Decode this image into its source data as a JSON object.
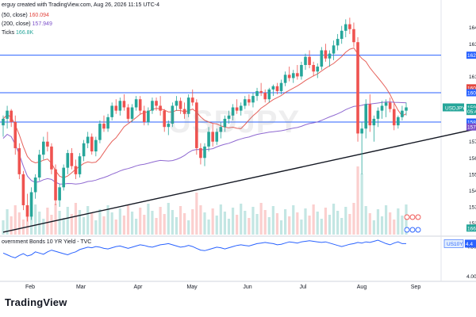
{
  "header": {
    "line1": "erguy created with TradingView.com, Aug 26, 2026 11:15 UTC-4",
    "line2_label": "(50, close)",
    "line2_value": "160.094",
    "line3_label": "(200, close)",
    "line3_value": "157.949",
    "line4_label": "Ticks",
    "line4_value": "166.8K"
  },
  "watermark": "USDJPY",
  "brand": "TradingView",
  "colors": {
    "up": "#26a69a",
    "down": "#ef5350",
    "sma50": "#e2463f",
    "sma200": "#7b4fc9",
    "hline": "#2962ff",
    "trendline": "#131722",
    "yield_line": "#2962ff",
    "label_bg": "#e2463f",
    "price_label_bg": "#26a69a"
  },
  "price_axis": {
    "ticks": [
      "164",
      "163",
      "161",
      "159",
      "157",
      "156",
      "155",
      "154",
      "153",
      "152"
    ],
    "badges": [
      {
        "text": "162",
        "value": 162.3,
        "kind": "hline"
      },
      {
        "text": "160",
        "value": 160.3,
        "kind": "sma50"
      },
      {
        "text": "160",
        "value": 160.0,
        "kind": "hline"
      },
      {
        "text": "159",
        "value": 159.1,
        "kind": "price"
      },
      {
        "text": "05:4",
        "value": 158.85,
        "kind": "countdown"
      },
      {
        "text": "158",
        "value": 158.2,
        "kind": "hline"
      },
      {
        "text": "157",
        "value": 157.9,
        "kind": "sma200"
      },
      {
        "text": "166",
        "value": 151.7,
        "kind": "volume"
      }
    ],
    "symbol_label": "USDJPY"
  },
  "sub_pane": {
    "title": "overnment Bonds 10 YR Yield - TVC",
    "ticks": [
      "4.50",
      "4.00"
    ],
    "badge_symbol": "US10Y",
    "badge_value": "4.4"
  },
  "time_axis": {
    "labels": [
      "Feb",
      "Mar",
      "Apr",
      "May",
      "Jun",
      "Jul",
      "Aug",
      "Sep"
    ]
  },
  "chart_data": [
    {
      "type": "candlestick",
      "symbol": "USDJPY",
      "ylim": [
        151.3,
        165.2
      ],
      "horizontal_lines": [
        162.3,
        160.0,
        158.2
      ],
      "trendline": {
        "from": [
          0,
          151.45
        ],
        "to": [
          140,
          159.0
        ]
      },
      "ohlc": [
        [
          158.0,
          158.6,
          157.3,
          158.4
        ],
        [
          158.4,
          159.2,
          157.8,
          158.9
        ],
        [
          158.9,
          159.0,
          157.9,
          158.2
        ],
        [
          158.2,
          158.6,
          156.2,
          156.6
        ],
        [
          156.6,
          156.9,
          154.7,
          155.0
        ],
        [
          155.0,
          155.2,
          152.8,
          153.1
        ],
        [
          153.1,
          153.8,
          152.1,
          152.4
        ],
        [
          152.4,
          154.2,
          152.2,
          153.9
        ],
        [
          153.9,
          155.0,
          153.5,
          154.8
        ],
        [
          154.8,
          156.5,
          154.6,
          156.2
        ],
        [
          156.2,
          157.3,
          155.9,
          157.0
        ],
        [
          157.0,
          157.6,
          156.4,
          156.7
        ],
        [
          156.7,
          156.9,
          155.0,
          155.3
        ],
        [
          155.3,
          155.6,
          153.1,
          153.4
        ],
        [
          153.4,
          154.4,
          153.0,
          154.2
        ],
        [
          154.2,
          155.6,
          154.0,
          155.4
        ],
        [
          155.4,
          156.5,
          155.0,
          156.3
        ],
        [
          156.3,
          156.6,
          155.3,
          155.5
        ],
        [
          155.5,
          155.9,
          154.7,
          155.0
        ],
        [
          155.0,
          156.3,
          154.8,
          156.1
        ],
        [
          156.1,
          157.1,
          155.8,
          156.9
        ],
        [
          156.9,
          157.6,
          156.6,
          157.3
        ],
        [
          157.3,
          157.5,
          156.2,
          156.4
        ],
        [
          156.4,
          157.3,
          156.1,
          157.1
        ],
        [
          157.1,
          158.3,
          156.9,
          158.1
        ],
        [
          158.1,
          158.6,
          157.6,
          157.8
        ],
        [
          157.8,
          158.7,
          157.6,
          158.5
        ],
        [
          158.5,
          159.4,
          158.3,
          159.2
        ],
        [
          159.2,
          159.6,
          158.7,
          158.9
        ],
        [
          158.9,
          159.7,
          158.6,
          159.5
        ],
        [
          159.5,
          159.9,
          158.9,
          159.1
        ],
        [
          159.1,
          159.3,
          158.2,
          158.4
        ],
        [
          158.4,
          159.3,
          158.2,
          159.1
        ],
        [
          159.1,
          159.8,
          158.9,
          159.6
        ],
        [
          159.6,
          159.8,
          158.7,
          158.9
        ],
        [
          158.9,
          159.2,
          158.0,
          158.2
        ],
        [
          158.2,
          159.1,
          158.0,
          158.9
        ],
        [
          158.9,
          159.7,
          158.7,
          159.5
        ],
        [
          159.5,
          159.7,
          158.9,
          159.2
        ],
        [
          159.2,
          159.8,
          158.6,
          158.9
        ],
        [
          158.9,
          159.0,
          157.6,
          157.9
        ],
        [
          157.9,
          158.3,
          157.4,
          158.1
        ],
        [
          158.1,
          159.4,
          157.9,
          159.2
        ],
        [
          159.2,
          159.8,
          158.9,
          159.5
        ],
        [
          159.5,
          159.7,
          158.7,
          159.0
        ],
        [
          159.0,
          159.4,
          158.4,
          158.7
        ],
        [
          158.7,
          159.9,
          158.5,
          159.7
        ],
        [
          159.7,
          160.2,
          159.2,
          159.4
        ],
        [
          159.4,
          159.6,
          156.2,
          156.6
        ],
        [
          156.6,
          156.9,
          155.6,
          156.0
        ],
        [
          156.0,
          156.9,
          155.5,
          156.7
        ],
        [
          156.7,
          157.9,
          156.4,
          157.6
        ],
        [
          157.6,
          158.1,
          156.7,
          157.0
        ],
        [
          157.0,
          157.8,
          156.8,
          157.6
        ],
        [
          157.6,
          158.2,
          157.2,
          157.9
        ],
        [
          157.9,
          158.6,
          157.6,
          158.4
        ],
        [
          158.4,
          158.9,
          158.1,
          158.6
        ],
        [
          158.6,
          159.3,
          158.3,
          159.1
        ],
        [
          159.1,
          159.6,
          158.7,
          158.9
        ],
        [
          158.9,
          159.4,
          158.6,
          159.2
        ],
        [
          159.2,
          159.8,
          159.0,
          159.6
        ],
        [
          159.6,
          159.9,
          159.2,
          159.4
        ],
        [
          159.4,
          160.0,
          159.1,
          159.8
        ],
        [
          159.8,
          160.3,
          159.5,
          160.1
        ],
        [
          160.1,
          160.6,
          159.8,
          160.0
        ],
        [
          160.0,
          160.2,
          159.4,
          159.6
        ],
        [
          159.6,
          160.3,
          159.4,
          160.2
        ],
        [
          160.2,
          160.5,
          159.8,
          160.4
        ],
        [
          160.4,
          160.6,
          159.9,
          160.1
        ],
        [
          160.1,
          160.8,
          159.9,
          160.6
        ],
        [
          160.6,
          161.3,
          160.4,
          161.1
        ],
        [
          161.1,
          161.6,
          160.7,
          160.9
        ],
        [
          160.9,
          161.4,
          160.6,
          161.2
        ],
        [
          161.2,
          161.7,
          160.8,
          161.0
        ],
        [
          161.0,
          161.9,
          160.8,
          161.7
        ],
        [
          161.7,
          162.4,
          161.4,
          162.2
        ],
        [
          162.2,
          162.6,
          161.5,
          161.7
        ],
        [
          161.7,
          161.9,
          161.0,
          161.3
        ],
        [
          161.3,
          161.8,
          160.9,
          161.6
        ],
        [
          161.6,
          162.8,
          161.4,
          162.6
        ],
        [
          162.6,
          163.0,
          161.9,
          162.1
        ],
        [
          162.1,
          162.6,
          161.6,
          162.4
        ],
        [
          162.4,
          163.2,
          162.0,
          162.9
        ],
        [
          162.9,
          163.6,
          162.6,
          163.3
        ],
        [
          163.3,
          164.1,
          163.0,
          163.8
        ],
        [
          163.8,
          164.5,
          163.4,
          164.2
        ],
        [
          164.2,
          164.6,
          163.6,
          163.9
        ],
        [
          163.9,
          164.3,
          162.8,
          163.1
        ],
        [
          163.1,
          163.4,
          157.0,
          157.5
        ],
        [
          157.5,
          158.2,
          155.0,
          157.8
        ],
        [
          157.8,
          159.6,
          157.2,
          159.3
        ],
        [
          159.3,
          159.9,
          157.6,
          158.0
        ],
        [
          158.0,
          158.6,
          157.0,
          158.4
        ],
        [
          158.4,
          159.1,
          157.9,
          158.9
        ],
        [
          158.9,
          159.5,
          158.4,
          159.2
        ],
        [
          159.2,
          159.6,
          158.5,
          159.4
        ],
        [
          159.4,
          159.7,
          158.8,
          159.0
        ],
        [
          159.0,
          159.4,
          157.7,
          158.0
        ],
        [
          158.0,
          158.6,
          157.8,
          158.5
        ],
        [
          158.5,
          159.2,
          158.3,
          158.9
        ],
        [
          158.9,
          159.4,
          158.6,
          159.1
        ]
      ],
      "volume_labels": [
        "166"
      ],
      "moving_averages": [
        {
          "name": "(50, close)",
          "last": 160.094
        },
        {
          "name": "(200, close)",
          "last": 157.949
        }
      ]
    },
    {
      "type": "line",
      "title": "overnment Bonds 10 YR Yield - TVC",
      "ylim": [
        3.95,
        4.65
      ],
      "values": [
        4.39,
        4.36,
        4.33,
        4.31,
        4.35,
        4.38,
        4.34,
        4.36,
        4.41,
        4.39,
        4.37,
        4.41,
        4.44,
        4.42,
        4.4,
        4.38,
        4.36,
        4.39,
        4.41,
        4.45,
        4.47,
        4.49,
        4.48,
        4.5,
        4.49,
        4.47,
        4.46,
        4.48,
        4.5,
        4.51,
        4.49,
        4.47,
        4.49,
        4.51,
        4.53,
        4.52,
        4.5,
        4.49,
        4.51,
        4.53,
        4.54,
        4.55,
        4.53,
        4.51,
        4.49,
        4.5,
        4.52,
        4.5,
        4.47,
        4.44,
        4.43,
        4.45,
        4.47,
        4.49,
        4.48,
        4.46,
        4.48,
        4.5,
        4.52,
        4.53,
        4.52,
        4.51,
        4.53,
        4.55,
        4.56,
        4.57,
        4.56,
        4.55,
        4.53,
        4.54,
        4.56,
        4.58,
        4.57,
        4.56,
        4.58,
        4.59,
        4.6,
        4.59,
        4.58,
        4.57,
        4.58,
        4.56,
        4.54,
        4.52,
        4.5,
        4.52,
        4.54,
        4.55,
        4.57,
        4.56,
        4.58,
        4.57,
        4.59,
        4.61,
        4.58,
        4.55,
        4.53,
        4.56,
        4.58,
        4.55,
        4.55
      ]
    }
  ]
}
